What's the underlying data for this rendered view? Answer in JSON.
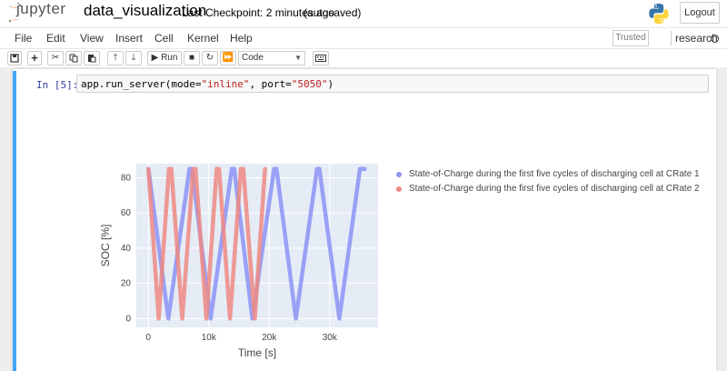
{
  "header": {
    "logo_text": "jupyter",
    "notebook_name": "data_visualization",
    "checkpoint": "Last Checkpoint: 2 minutes ago",
    "autosave": "(autosaved)",
    "logout_label": "Logout"
  },
  "menu": {
    "items": [
      "File",
      "Edit",
      "View",
      "Insert",
      "Cell",
      "Kernel",
      "Help"
    ],
    "trusted_label": "Trusted",
    "kernel_name": "research"
  },
  "toolbar": {
    "run_label": "Run",
    "cell_type": "Code"
  },
  "cell": {
    "prompt": "In [5]:",
    "code": {
      "part1": "app.run_server(mode=",
      "str1": "\"inline\"",
      "part2": ", port=",
      "str2": "\"5050\"",
      "part3": ")"
    }
  },
  "chart_data": {
    "type": "scatter",
    "title": "",
    "xlabel": "Time [s]",
    "ylabel": "SOC [%]",
    "xlim": [
      -2000,
      38000
    ],
    "ylim": [
      -5,
      88
    ],
    "xticks": [
      0,
      10000,
      20000,
      30000
    ],
    "xtick_labels": [
      "0",
      "10k",
      "20k",
      "30k"
    ],
    "yticks": [
      0,
      20,
      40,
      60,
      80
    ],
    "yticks_labels": [
      "0",
      "20",
      "40",
      "60",
      "80"
    ],
    "grid": true,
    "legend_position": "right",
    "background": "#e5ecf6",
    "series": [
      {
        "name": "State-of-Charge during the first five cycles of discharging cell at CRate 1",
        "color": "#8c93f5",
        "x": [
          0,
          3300,
          6800,
          7200,
          10300,
          13800,
          14200,
          17200,
          20800,
          21200,
          24400,
          27900,
          28300,
          31600,
          35000,
          35800
        ],
        "y": [
          85,
          0,
          85,
          85,
          0,
          85,
          85,
          0,
          85,
          85,
          0,
          85,
          85,
          0,
          85,
          85
        ]
      },
      {
        "name": "State-of-Charge during the first five cycles of discharging cell at CRate 2",
        "color": "#ef8a82",
        "x": [
          0,
          1700,
          3400,
          3800,
          5600,
          7400,
          7800,
          9600,
          11300,
          11700,
          13500,
          15300,
          15700,
          17600,
          19300
        ],
        "y": [
          85,
          0,
          85,
          85,
          0,
          85,
          85,
          0,
          85,
          85,
          0,
          85,
          85,
          0,
          85
        ]
      }
    ]
  },
  "colors": {
    "cell_border": "#42a5f5",
    "prompt": "#303f9f",
    "string": "#ba2121"
  }
}
